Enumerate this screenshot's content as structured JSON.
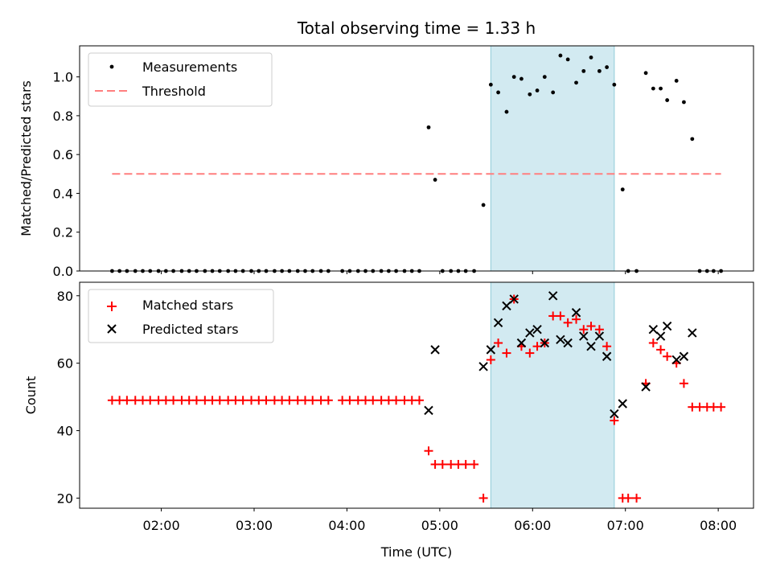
{
  "chart_data": [
    {
      "type": "scatter",
      "title": "Total observing time = 1.33 h",
      "ylabel": "Matched/Predicted stars",
      "xlabel": "",
      "ylim": [
        0,
        1.16
      ],
      "yticks": [
        0.0,
        0.2,
        0.4,
        0.6,
        0.8,
        1.0
      ],
      "ytick_labels": [
        "0.0",
        "0.2",
        "0.4",
        "0.6",
        "0.8",
        "1.0"
      ],
      "shaded_region": [
        5.55,
        6.88
      ],
      "legend": "top-left",
      "legend_entries": [
        "Measurements",
        "Threshold"
      ],
      "threshold": {
        "name": "Threshold",
        "y": 0.5,
        "x": [
          1.47,
          8.03
        ],
        "color": "#ff7f7f"
      },
      "series": [
        {
          "name": "Measurements",
          "color": "#000000",
          "x": [
            1.47,
            1.55,
            1.63,
            1.72,
            1.8,
            1.88,
            1.97,
            2.05,
            2.13,
            2.22,
            2.3,
            2.38,
            2.47,
            2.55,
            2.63,
            2.72,
            2.8,
            2.88,
            2.97,
            3.05,
            3.13,
            3.22,
            3.3,
            3.38,
            3.47,
            3.55,
            3.63,
            3.72,
            3.8,
            3.95,
            4.03,
            4.12,
            4.2,
            4.28,
            4.37,
            4.45,
            4.53,
            4.62,
            4.7,
            4.78,
            4.88,
            4.95,
            5.03,
            5.12,
            5.2,
            5.28,
            5.37,
            5.47,
            5.55,
            5.63,
            5.72,
            5.8,
            5.88,
            5.97,
            6.05,
            6.13,
            6.22,
            6.3,
            6.38,
            6.47,
            6.55,
            6.63,
            6.72,
            6.8,
            6.88,
            6.97,
            7.03,
            7.12,
            7.22,
            7.3,
            7.38,
            7.45,
            7.55,
            7.63,
            7.72,
            7.8,
            7.88,
            7.95,
            8.03
          ],
          "y": [
            0,
            0,
            0,
            0,
            0,
            0,
            0,
            0,
            0,
            0,
            0,
            0,
            0,
            0,
            0,
            0,
            0,
            0,
            0,
            0,
            0,
            0,
            0,
            0,
            0,
            0,
            0,
            0,
            0,
            0,
            0,
            0,
            0,
            0,
            0,
            0,
            0,
            0,
            0,
            0,
            0.74,
            0.47,
            0,
            0,
            0,
            0,
            0,
            0.34,
            0.96,
            0.92,
            0.82,
            1.0,
            0.99,
            0.91,
            0.93,
            1.0,
            0.92,
            1.11,
            1.09,
            0.97,
            1.03,
            1.1,
            1.03,
            1.05,
            0.96,
            0.42,
            0,
            0,
            1.02,
            0.94,
            0.94,
            0.88,
            0.98,
            0.87,
            0.68,
            0,
            0,
            0,
            0
          ]
        }
      ]
    },
    {
      "type": "scatter",
      "title": "",
      "ylabel": "Count",
      "xlabel": "Time (UTC)",
      "ylim": [
        17,
        84
      ],
      "yticks": [
        20,
        40,
        60,
        80
      ],
      "xlim": [
        1.12,
        8.38
      ],
      "xticks": [
        2,
        3,
        4,
        5,
        6,
        7,
        8
      ],
      "xtick_labels": [
        "02:00",
        "03:00",
        "04:00",
        "05:00",
        "06:00",
        "07:00",
        "08:00"
      ],
      "shaded_region": [
        5.55,
        6.88
      ],
      "legend": "top-left",
      "legend_entries": [
        "Matched stars",
        "Predicted stars"
      ],
      "series": [
        {
          "name": "Matched stars",
          "marker": "plus",
          "color": "#ff0000",
          "x": [
            1.47,
            1.55,
            1.63,
            1.72,
            1.8,
            1.88,
            1.97,
            2.05,
            2.13,
            2.22,
            2.3,
            2.38,
            2.47,
            2.55,
            2.63,
            2.72,
            2.8,
            2.88,
            2.97,
            3.05,
            3.13,
            3.22,
            3.3,
            3.38,
            3.47,
            3.55,
            3.63,
            3.72,
            3.8,
            3.95,
            4.03,
            4.12,
            4.2,
            4.28,
            4.37,
            4.45,
            4.53,
            4.62,
            4.7,
            4.78,
            4.88,
            4.95,
            5.03,
            5.12,
            5.2,
            5.28,
            5.37,
            5.47,
            5.55,
            5.63,
            5.72,
            5.8,
            5.88,
            5.97,
            6.05,
            6.13,
            6.22,
            6.3,
            6.38,
            6.47,
            6.55,
            6.63,
            6.72,
            6.8,
            6.88,
            6.97,
            7.03,
            7.12,
            7.22,
            7.3,
            7.38,
            7.45,
            7.55,
            7.63,
            7.72,
            7.8,
            7.88,
            7.95,
            8.03
          ],
          "y": [
            49,
            49,
            49,
            49,
            49,
            49,
            49,
            49,
            49,
            49,
            49,
            49,
            49,
            49,
            49,
            49,
            49,
            49,
            49,
            49,
            49,
            49,
            49,
            49,
            49,
            49,
            49,
            49,
            49,
            49,
            49,
            49,
            49,
            49,
            49,
            49,
            49,
            49,
            49,
            49,
            34,
            30,
            30,
            30,
            30,
            30,
            30,
            20,
            61,
            66,
            63,
            79,
            65,
            63,
            65,
            66,
            74,
            74,
            72,
            73,
            70,
            71,
            70,
            65,
            43,
            20,
            20,
            20,
            54,
            66,
            64,
            62,
            60,
            54,
            47,
            47,
            47,
            47,
            47
          ]
        },
        {
          "name": "Predicted stars",
          "marker": "x",
          "color": "#000000",
          "x": [
            4.88,
            4.95,
            5.47,
            5.55,
            5.63,
            5.72,
            5.8,
            5.88,
            5.97,
            6.05,
            6.13,
            6.22,
            6.3,
            6.38,
            6.47,
            6.55,
            6.63,
            6.72,
            6.8,
            6.88,
            6.97,
            7.22,
            7.3,
            7.38,
            7.45,
            7.55,
            7.63,
            7.72
          ],
          "y": [
            46,
            64,
            59,
            64,
            72,
            77,
            79,
            66,
            69,
            70,
            66,
            80,
            67,
            66,
            75,
            68,
            65,
            68,
            62,
            45,
            48,
            53,
            70,
            68,
            71,
            61,
            62,
            69
          ]
        }
      ]
    }
  ]
}
